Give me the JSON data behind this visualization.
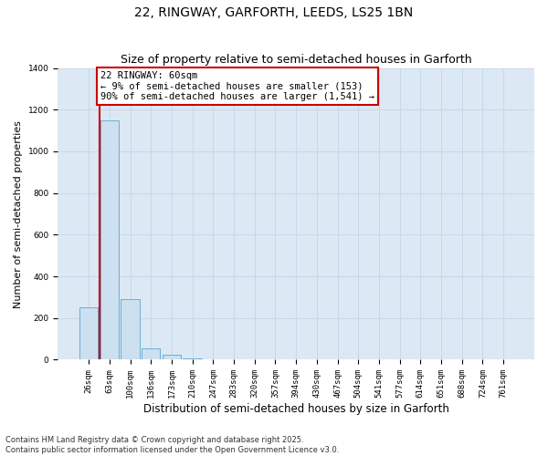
{
  "title_line1": "22, RINGWAY, GARFORTH, LEEDS, LS25 1BN",
  "title_line2": "Size of property relative to semi-detached houses in Garforth",
  "xlabel": "Distribution of semi-detached houses by size in Garforth",
  "ylabel": "Number of semi-detached properties",
  "categories": [
    "26sqm",
    "63sqm",
    "100sqm",
    "136sqm",
    "173sqm",
    "210sqm",
    "247sqm",
    "283sqm",
    "320sqm",
    "357sqm",
    "394sqm",
    "430sqm",
    "467sqm",
    "504sqm",
    "541sqm",
    "577sqm",
    "614sqm",
    "651sqm",
    "688sqm",
    "724sqm",
    "761sqm"
  ],
  "values": [
    253,
    1150,
    290,
    55,
    25,
    8,
    0,
    0,
    0,
    0,
    0,
    0,
    0,
    0,
    0,
    0,
    0,
    0,
    0,
    0,
    0
  ],
  "bar_color": "#cce0f0",
  "bar_edge_color": "#6baed6",
  "annotation_text": "22 RINGWAY: 60sqm\n← 9% of semi-detached houses are smaller (153)\n90% of semi-detached houses are larger (1,541) →",
  "annotation_box_color": "#ffffff",
  "annotation_border_color": "#cc0000",
  "vline_color": "#cc0000",
  "vline_x": 0.5,
  "ylim": [
    0,
    1400
  ],
  "yticks": [
    0,
    200,
    400,
    600,
    800,
    1000,
    1200,
    1400
  ],
  "grid_color": "#c8d8e8",
  "bg_color": "#dce8f4",
  "footer_text": "Contains HM Land Registry data © Crown copyright and database right 2025.\nContains public sector information licensed under the Open Government Licence v3.0.",
  "title_fontsize": 10,
  "subtitle_fontsize": 9,
  "tick_fontsize": 6.5,
  "ylabel_fontsize": 8,
  "xlabel_fontsize": 8.5,
  "annotation_fontsize": 7.5,
  "footer_fontsize": 6
}
